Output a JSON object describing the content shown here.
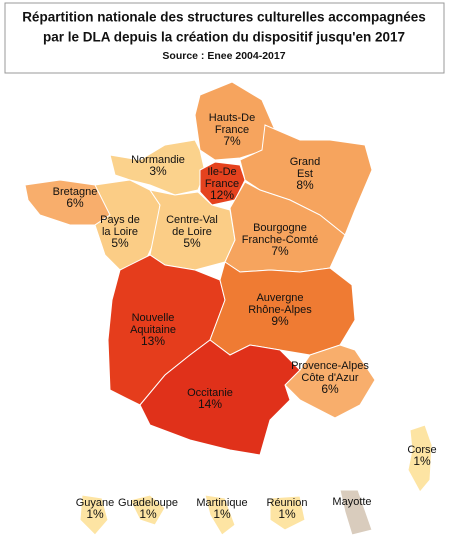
{
  "header": {
    "title_lines": [
      "Répartition nationale des structures culturelles accompagnées",
      "par le DLA depuis la création du dispositif jusqu'en 2017"
    ],
    "source": "Source : Enee 2004-2017"
  },
  "regions": [
    {
      "name_lines": [
        "Hauts-De",
        "France"
      ],
      "value": 7,
      "label": "7%",
      "color": "#f6a45e"
    },
    {
      "name_lines": [
        "Normandie"
      ],
      "value": 3,
      "label": "3%",
      "color": "#fbd28c"
    },
    {
      "name_lines": [
        "Ile-De",
        "France"
      ],
      "value": 12,
      "label": "12%",
      "color": "#e5421e"
    },
    {
      "name_lines": [
        "Grand",
        "Est"
      ],
      "value": 8,
      "label": "8%",
      "color": "#f6a45e"
    },
    {
      "name_lines": [
        "Bretagne"
      ],
      "value": 6,
      "label": "6%",
      "color": "#f8ae6c"
    },
    {
      "name_lines": [
        "Pays de",
        "la Loire"
      ],
      "value": 5,
      "label": "5%",
      "color": "#fbcd86"
    },
    {
      "name_lines": [
        "Centre-Val",
        "de Loire"
      ],
      "value": 5,
      "label": "5%",
      "color": "#fbcd86"
    },
    {
      "name_lines": [
        "Bourgogne",
        "Franche-Comté"
      ],
      "value": 7,
      "label": "7%",
      "color": "#f6a45e"
    },
    {
      "name_lines": [
        "Nouvelle",
        "Aquitaine"
      ],
      "value": 13,
      "label": "13%",
      "color": "#e53d1c"
    },
    {
      "name_lines": [
        "Auvergne",
        "Rhône-Alpes"
      ],
      "value": 9,
      "label": "9%",
      "color": "#ef7b33"
    },
    {
      "name_lines": [
        "Provence-Alpes",
        "Côte d'Azur"
      ],
      "value": 6,
      "label": "6%",
      "color": "#f8ae6c"
    },
    {
      "name_lines": [
        "Occitanie"
      ],
      "value": 14,
      "label": "14%",
      "color": "#e0311a"
    },
    {
      "name_lines": [
        "Corse"
      ],
      "value": 1,
      "label": "1%",
      "color": "#fde4a3"
    },
    {
      "name_lines": [
        "Guyane"
      ],
      "value": 1,
      "label": "1%",
      "color": "#fde4a3"
    },
    {
      "name_lines": [
        "Guadeloupe"
      ],
      "value": 1,
      "label": "1%",
      "color": "#fde4a3"
    },
    {
      "name_lines": [
        "Martinique"
      ],
      "value": 1,
      "label": "1%",
      "color": "#fde4a3"
    },
    {
      "name_lines": [
        "Réunion"
      ],
      "value": 1,
      "label": "1%",
      "color": "#fde4a3"
    },
    {
      "name_lines": [
        "Mayotte"
      ],
      "color": "#d9ccbd"
    }
  ]
}
